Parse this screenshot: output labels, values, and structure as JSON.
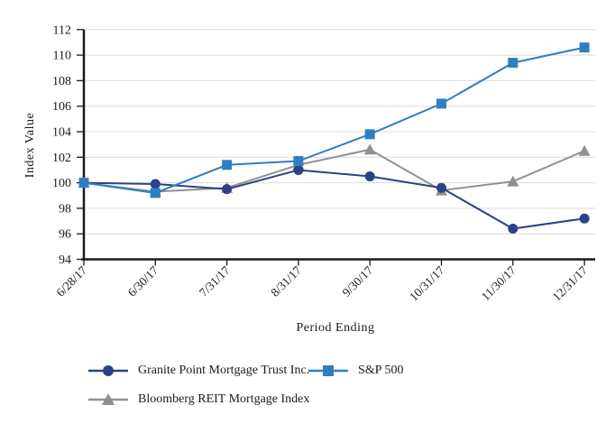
{
  "chart_data": {
    "type": "line",
    "title": "",
    "xlabel": "Period Ending",
    "ylabel": "Index Value",
    "ylim": [
      94,
      112
    ],
    "ytick_step": 2,
    "grid": true,
    "legend_position": "bottom-left",
    "categories": [
      "6/28/17",
      "6/30/17",
      "7/31/17",
      "8/31/17",
      "9/30/17",
      "10/31/17",
      "11/30/17",
      "12/31/17"
    ],
    "series": [
      {
        "name": "Granite Point Mortgage Trust Inc.",
        "marker": "circle",
        "color": "#2B4289",
        "values": [
          100.0,
          99.9,
          99.5,
          101.0,
          100.5,
          99.6,
          96.4,
          97.2
        ]
      },
      {
        "name": "S&P 500",
        "marker": "square",
        "color": "#2E7FC1",
        "values": [
          100.0,
          99.2,
          101.4,
          101.7,
          103.8,
          106.2,
          109.4,
          110.6
        ]
      },
      {
        "name": "Bloomberg REIT Mortgage Index",
        "marker": "triangle",
        "color": "#909090",
        "values": [
          100.0,
          99.3,
          99.6,
          101.4,
          102.6,
          99.4,
          100.1,
          102.5
        ]
      }
    ]
  },
  "colors": {
    "axis": "#1a1a1a",
    "grid": "#dcdcdc",
    "text": "#1a1a1a",
    "background": "#ffffff"
  }
}
